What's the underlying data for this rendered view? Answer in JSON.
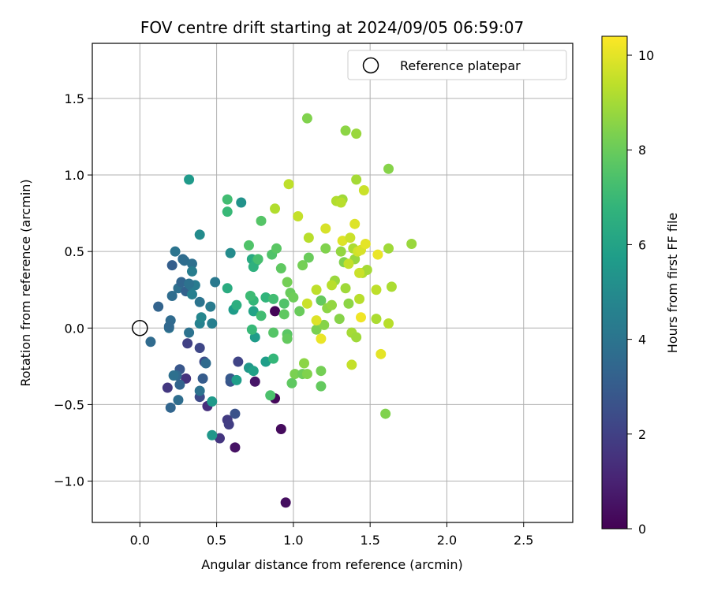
{
  "chart_data": {
    "type": "scatter",
    "title": "FOV centre drift starting at 2024/09/05 06:59:07",
    "xlabel": "Angular distance from reference (arcmin)",
    "ylabel": "Rotation from reference (arcmin)",
    "xlim": [
      -0.31,
      2.82
    ],
    "ylim": [
      -1.27,
      1.86
    ],
    "xticks": [
      0.0,
      0.5,
      1.0,
      1.5,
      2.0,
      2.5
    ],
    "xtick_labels": [
      "0.0",
      "0.5",
      "1.0",
      "1.5",
      "2.0",
      "2.5"
    ],
    "yticks": [
      -1.0,
      -0.5,
      0.0,
      0.5,
      1.0,
      1.5
    ],
    "ytick_labels": [
      "−1.0",
      "−0.5",
      "0.0",
      "0.5",
      "1.0",
      "1.5"
    ],
    "grid": true,
    "legend": {
      "position": "top-right",
      "entries": [
        "Reference platepar"
      ]
    },
    "reference": {
      "x": 0.0,
      "y": 0.0,
      "label": "Reference platepar"
    },
    "colorbar": {
      "label": "Hours from first FF file",
      "min": 0,
      "max": 10.4,
      "ticks": [
        0,
        2,
        4,
        6,
        8,
        10
      ],
      "tick_labels": [
        "0",
        "2",
        "4",
        "6",
        "8",
        "10"
      ],
      "colormap": "viridis"
    },
    "points": [
      {
        "x": 0.88,
        "y": 0.11,
        "t": 0.1
      },
      {
        "x": 0.88,
        "y": -0.46,
        "t": 0.2
      },
      {
        "x": 0.92,
        "y": -0.66,
        "t": 0.3
      },
      {
        "x": 0.95,
        "y": -1.14,
        "t": 0.4
      },
      {
        "x": 0.62,
        "y": -0.78,
        "t": 0.5
      },
      {
        "x": 0.75,
        "y": -0.35,
        "t": 0.6
      },
      {
        "x": 0.44,
        "y": -0.51,
        "t": 1.4
      },
      {
        "x": 0.52,
        "y": -0.72,
        "t": 1.6
      },
      {
        "x": 0.57,
        "y": -0.6,
        "t": 1.8
      },
      {
        "x": 0.58,
        "y": -0.63,
        "t": 1.9
      },
      {
        "x": 0.31,
        "y": -0.1,
        "t": 2.0
      },
      {
        "x": 0.3,
        "y": -0.33,
        "t": 1.5
      },
      {
        "x": 0.18,
        "y": -0.39,
        "t": 1.7
      },
      {
        "x": 0.39,
        "y": -0.45,
        "t": 2.3
      },
      {
        "x": 0.42,
        "y": -0.22,
        "t": 2.4
      },
      {
        "x": 0.39,
        "y": -0.13,
        "t": 2.2
      },
      {
        "x": 0.62,
        "y": -0.56,
        "t": 2.6
      },
      {
        "x": 0.59,
        "y": -0.35,
        "t": 2.7
      },
      {
        "x": 0.64,
        "y": -0.22,
        "t": 2.1
      },
      {
        "x": 0.59,
        "y": -0.33,
        "t": 2.9
      },
      {
        "x": 0.26,
        "y": -0.27,
        "t": 2.8
      },
      {
        "x": 0.26,
        "y": -0.37,
        "t": 3.3
      },
      {
        "x": 0.24,
        "y": -0.31,
        "t": 3.5
      },
      {
        "x": 0.22,
        "y": -0.31,
        "t": 3.8
      },
      {
        "x": 0.41,
        "y": -0.33,
        "t": 3.0
      },
      {
        "x": 0.2,
        "y": -0.52,
        "t": 3.4
      },
      {
        "x": 0.25,
        "y": -0.47,
        "t": 3.7
      },
      {
        "x": 0.39,
        "y": -0.41,
        "t": 3.9
      },
      {
        "x": 0.43,
        "y": -0.23,
        "t": 3.6
      },
      {
        "x": 0.07,
        "y": -0.09,
        "t": 3.6
      },
      {
        "x": 0.12,
        "y": 0.14,
        "t": 3.3
      },
      {
        "x": 0.32,
        "y": -0.03,
        "t": 3.9
      },
      {
        "x": 0.19,
        "y": 0.0,
        "t": 4.0
      },
      {
        "x": 0.2,
        "y": 0.05,
        "t": 3.6
      },
      {
        "x": 0.19,
        "y": 0.01,
        "t": 3.5
      },
      {
        "x": 0.21,
        "y": 0.21,
        "t": 3.7
      },
      {
        "x": 0.25,
        "y": 0.26,
        "t": 3.8
      },
      {
        "x": 0.3,
        "y": 0.24,
        "t": 3.2
      },
      {
        "x": 0.27,
        "y": 0.3,
        "t": 3.4
      },
      {
        "x": 0.33,
        "y": 0.28,
        "t": 4.1
      },
      {
        "x": 0.36,
        "y": 0.28,
        "t": 4.3
      },
      {
        "x": 0.34,
        "y": 0.22,
        "t": 4.5
      },
      {
        "x": 0.32,
        "y": 0.29,
        "t": 3.9
      },
      {
        "x": 0.21,
        "y": 0.41,
        "t": 3.1
      },
      {
        "x": 0.28,
        "y": 0.45,
        "t": 3.6
      },
      {
        "x": 0.29,
        "y": 0.44,
        "t": 3.7
      },
      {
        "x": 0.23,
        "y": 0.5,
        "t": 4.0
      },
      {
        "x": 0.34,
        "y": 0.42,
        "t": 3.8
      },
      {
        "x": 0.34,
        "y": 0.37,
        "t": 4.4
      },
      {
        "x": 0.39,
        "y": 0.17,
        "t": 4.0
      },
      {
        "x": 0.46,
        "y": 0.14,
        "t": 4.3
      },
      {
        "x": 0.39,
        "y": 0.03,
        "t": 4.6
      },
      {
        "x": 0.4,
        "y": 0.07,
        "t": 4.8
      },
      {
        "x": 0.47,
        "y": 0.03,
        "t": 4.5
      },
      {
        "x": 0.49,
        "y": 0.3,
        "t": 4.2
      },
      {
        "x": 0.39,
        "y": 0.61,
        "t": 5.0
      },
      {
        "x": 0.32,
        "y": 0.97,
        "t": 5.6
      },
      {
        "x": 0.59,
        "y": 0.49,
        "t": 5.0
      },
      {
        "x": 0.66,
        "y": 0.82,
        "t": 5.3
      },
      {
        "x": 0.47,
        "y": -0.48,
        "t": 5.6
      },
      {
        "x": 0.47,
        "y": -0.7,
        "t": 5.5
      },
      {
        "x": 0.63,
        "y": -0.34,
        "t": 5.8
      },
      {
        "x": 0.61,
        "y": 0.12,
        "t": 5.7
      },
      {
        "x": 0.71,
        "y": -0.26,
        "t": 5.5
      },
      {
        "x": 0.74,
        "y": -0.28,
        "t": 5.9
      },
      {
        "x": 0.75,
        "y": -0.06,
        "t": 5.7
      },
      {
        "x": 0.74,
        "y": 0.11,
        "t": 6.0
      },
      {
        "x": 0.82,
        "y": -0.22,
        "t": 5.8
      },
      {
        "x": 0.73,
        "y": 0.45,
        "t": 6.3
      },
      {
        "x": 0.57,
        "y": 0.26,
        "t": 6.4
      },
      {
        "x": 0.63,
        "y": 0.15,
        "t": 6.5
      },
      {
        "x": 0.76,
        "y": 0.44,
        "t": 6.7
      },
      {
        "x": 0.74,
        "y": 0.4,
        "t": 6.6
      },
      {
        "x": 0.74,
        "y": 0.18,
        "t": 6.9
      },
      {
        "x": 0.72,
        "y": 0.21,
        "t": 7.1
      },
      {
        "x": 0.73,
        "y": -0.01,
        "t": 7.0
      },
      {
        "x": 0.82,
        "y": 0.2,
        "t": 6.8
      },
      {
        "x": 0.79,
        "y": 0.08,
        "t": 7.2
      },
      {
        "x": 0.77,
        "y": 0.45,
        "t": 7.3
      },
      {
        "x": 0.87,
        "y": -0.2,
        "t": 6.9
      },
      {
        "x": 0.85,
        "y": -0.44,
        "t": 7.4
      },
      {
        "x": 0.57,
        "y": 0.84,
        "t": 7.2
      },
      {
        "x": 0.57,
        "y": 0.76,
        "t": 7.0
      },
      {
        "x": 0.71,
        "y": 0.54,
        "t": 7.5
      },
      {
        "x": 0.79,
        "y": 0.7,
        "t": 7.6
      },
      {
        "x": 0.86,
        "y": 0.48,
        "t": 7.5
      },
      {
        "x": 0.87,
        "y": 0.19,
        "t": 7.2
      },
      {
        "x": 0.87,
        "y": -0.03,
        "t": 7.6
      },
      {
        "x": 0.89,
        "y": 0.52,
        "t": 7.7
      },
      {
        "x": 0.92,
        "y": 0.39,
        "t": 7.8
      },
      {
        "x": 0.94,
        "y": 0.16,
        "t": 7.5
      },
      {
        "x": 0.94,
        "y": 0.09,
        "t": 7.8
      },
      {
        "x": 0.96,
        "y": -0.04,
        "t": 7.7
      },
      {
        "x": 0.96,
        "y": -0.07,
        "t": 7.9
      },
      {
        "x": 0.99,
        "y": -0.36,
        "t": 7.8
      },
      {
        "x": 0.98,
        "y": 0.23,
        "t": 8.0
      },
      {
        "x": 1.0,
        "y": 0.2,
        "t": 8.1
      },
      {
        "x": 0.96,
        "y": 0.3,
        "t": 8.2
      },
      {
        "x": 1.01,
        "y": -0.3,
        "t": 8.3
      },
      {
        "x": 1.04,
        "y": 0.11,
        "t": 8.0
      },
      {
        "x": 1.06,
        "y": 0.41,
        "t": 8.2
      },
      {
        "x": 1.06,
        "y": -0.3,
        "t": 8.1
      },
      {
        "x": 1.09,
        "y": -0.3,
        "t": 8.4
      },
      {
        "x": 1.1,
        "y": 0.46,
        "t": 8.0
      },
      {
        "x": 1.07,
        "y": -0.23,
        "t": 8.6
      },
      {
        "x": 1.15,
        "y": -0.01,
        "t": 8.3
      },
      {
        "x": 1.18,
        "y": 0.18,
        "t": 7.9
      },
      {
        "x": 1.18,
        "y": -0.28,
        "t": 8.2
      },
      {
        "x": 1.18,
        "y": -0.38,
        "t": 7.9
      },
      {
        "x": 1.2,
        "y": 0.02,
        "t": 8.5
      },
      {
        "x": 1.21,
        "y": 0.52,
        "t": 8.4
      },
      {
        "x": 1.22,
        "y": 0.13,
        "t": 8.6
      },
      {
        "x": 1.25,
        "y": 0.15,
        "t": 8.7
      },
      {
        "x": 1.27,
        "y": 0.31,
        "t": 8.8
      },
      {
        "x": 1.3,
        "y": 0.06,
        "t": 8.5
      },
      {
        "x": 1.31,
        "y": 0.5,
        "t": 8.7
      },
      {
        "x": 1.33,
        "y": 0.43,
        "t": 8.4
      },
      {
        "x": 1.34,
        "y": 0.26,
        "t": 8.9
      },
      {
        "x": 1.36,
        "y": 0.16,
        "t": 8.6
      },
      {
        "x": 1.38,
        "y": -0.03,
        "t": 9.0
      },
      {
        "x": 1.39,
        "y": 0.52,
        "t": 9.1
      },
      {
        "x": 1.4,
        "y": 0.45,
        "t": 8.8
      },
      {
        "x": 1.41,
        "y": -0.06,
        "t": 8.9
      },
      {
        "x": 1.43,
        "y": 0.19,
        "t": 9.3
      },
      {
        "x": 1.45,
        "y": 0.36,
        "t": 9.2
      },
      {
        "x": 1.48,
        "y": 0.38,
        "t": 9.0
      },
      {
        "x": 1.54,
        "y": 0.06,
        "t": 9.1
      },
      {
        "x": 1.54,
        "y": 0.25,
        "t": 9.4
      },
      {
        "x": 1.6,
        "y": -0.56,
        "t": 8.4
      },
      {
        "x": 1.62,
        "y": 0.52,
        "t": 8.9
      },
      {
        "x": 1.62,
        "y": 0.03,
        "t": 9.3
      },
      {
        "x": 1.64,
        "y": 0.27,
        "t": 9.1
      },
      {
        "x": 1.77,
        "y": 0.55,
        "t": 8.8
      },
      {
        "x": 1.62,
        "y": 1.04,
        "t": 8.5
      },
      {
        "x": 1.41,
        "y": 0.97,
        "t": 9.0
      },
      {
        "x": 1.41,
        "y": 1.27,
        "t": 8.8
      },
      {
        "x": 1.34,
        "y": 1.29,
        "t": 8.6
      },
      {
        "x": 1.09,
        "y": 1.37,
        "t": 8.4
      },
      {
        "x": 1.28,
        "y": 0.83,
        "t": 9.2
      },
      {
        "x": 1.32,
        "y": 0.84,
        "t": 8.9
      },
      {
        "x": 1.31,
        "y": 0.82,
        "t": 9.3
      },
      {
        "x": 1.46,
        "y": 0.9,
        "t": 9.6
      },
      {
        "x": 0.97,
        "y": 0.94,
        "t": 9.4
      },
      {
        "x": 0.88,
        "y": 0.78,
        "t": 9.2
      },
      {
        "x": 1.03,
        "y": 0.73,
        "t": 9.5
      },
      {
        "x": 1.1,
        "y": 0.59,
        "t": 9.3
      },
      {
        "x": 1.21,
        "y": 0.65,
        "t": 9.8
      },
      {
        "x": 1.32,
        "y": 0.57,
        "t": 9.9
      },
      {
        "x": 1.37,
        "y": 0.59,
        "t": 9.6
      },
      {
        "x": 1.4,
        "y": 0.68,
        "t": 9.9
      },
      {
        "x": 1.42,
        "y": 0.5,
        "t": 9.7
      },
      {
        "x": 1.44,
        "y": 0.51,
        "t": 9.8
      },
      {
        "x": 1.47,
        "y": 0.55,
        "t": 10.0
      },
      {
        "x": 1.55,
        "y": 0.48,
        "t": 10.1
      },
      {
        "x": 1.09,
        "y": 0.16,
        "t": 9.6
      },
      {
        "x": 1.15,
        "y": 0.05,
        "t": 9.9
      },
      {
        "x": 1.18,
        "y": -0.07,
        "t": 10.1
      },
      {
        "x": 1.38,
        "y": -0.24,
        "t": 9.5
      },
      {
        "x": 1.44,
        "y": 0.07,
        "t": 10.2
      },
      {
        "x": 1.57,
        "y": -0.17,
        "t": 10.0
      },
      {
        "x": 1.15,
        "y": 0.25,
        "t": 9.4
      },
      {
        "x": 1.25,
        "y": 0.28,
        "t": 9.3
      },
      {
        "x": 1.36,
        "y": 0.42,
        "t": 9.5
      },
      {
        "x": 1.43,
        "y": 0.36,
        "t": 9.6
      }
    ]
  }
}
